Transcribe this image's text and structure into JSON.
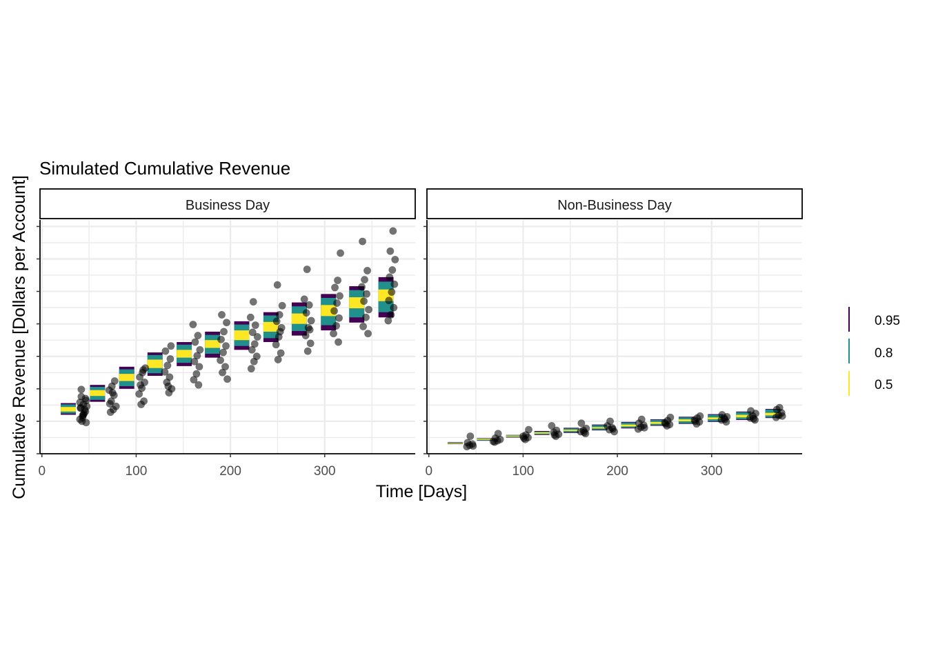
{
  "chart_data": {
    "type": "interval-with-points",
    "title": "Simulated Cumulative Revenue",
    "xlabel": "Time [Days]",
    "ylabel": "Cumulative Revenue [Dollars per Account]",
    "xlim": [
      -2,
      396
    ],
    "ylim": [
      0,
      36
    ],
    "x_ticks": [
      0,
      100,
      200,
      300
    ],
    "facets": [
      "Business Day",
      "Non-Business Day"
    ],
    "legend": {
      "position": "right",
      "entries": [
        {
          "label": "0.95",
          "color": "#440154"
        },
        {
          "label": "0.8",
          "color": "#21908C"
        },
        {
          "label": "0.5",
          "color": "#FDE725"
        }
      ]
    },
    "intervals": {
      "x": [
        28,
        59,
        90,
        120,
        151,
        181,
        212,
        243,
        273,
        304,
        334,
        365
      ],
      "width": 16,
      "Business Day": {
        "q95": [
          [
            6.0,
            7.8
          ],
          [
            8.0,
            10.6
          ],
          [
            10.0,
            13.4
          ],
          [
            12.0,
            15.6
          ],
          [
            13.5,
            17.2
          ],
          [
            14.8,
            18.8
          ],
          [
            16.0,
            20.4
          ],
          [
            17.2,
            21.8
          ],
          [
            18.2,
            23.3
          ],
          [
            19.0,
            24.6
          ],
          [
            20.2,
            25.8
          ],
          [
            21.0,
            27.2
          ]
        ],
        "q80": [
          [
            6.2,
            7.6
          ],
          [
            8.3,
            10.3
          ],
          [
            10.4,
            13.0
          ],
          [
            12.4,
            15.2
          ],
          [
            14.0,
            16.8
          ],
          [
            15.4,
            18.3
          ],
          [
            16.6,
            19.9
          ],
          [
            17.8,
            21.3
          ],
          [
            18.9,
            22.7
          ],
          [
            19.8,
            24.0
          ],
          [
            21.0,
            25.2
          ],
          [
            21.8,
            26.5
          ]
        ],
        "q50": [
          [
            6.5,
            7.2
          ],
          [
            8.9,
            9.8
          ],
          [
            11.2,
            12.3
          ],
          [
            13.2,
            14.5
          ],
          [
            14.8,
            16.0
          ],
          [
            16.3,
            17.5
          ],
          [
            17.5,
            19.0
          ],
          [
            18.8,
            20.3
          ],
          [
            20.0,
            21.6
          ],
          [
            21.2,
            22.9
          ],
          [
            22.4,
            24.1
          ],
          [
            23.5,
            25.3
          ]
        ]
      },
      "Non-Business Day": {
        "q95": [
          [
            1.5,
            1.8
          ],
          [
            2.0,
            2.4
          ],
          [
            2.5,
            2.9
          ],
          [
            2.9,
            3.5
          ],
          [
            3.2,
            4.0
          ],
          [
            3.6,
            4.5
          ],
          [
            3.9,
            4.9
          ],
          [
            4.3,
            5.3
          ],
          [
            4.6,
            5.7
          ],
          [
            4.9,
            6.1
          ],
          [
            5.2,
            6.5
          ],
          [
            5.5,
            6.9
          ]
        ],
        "q80": [
          [
            1.55,
            1.75
          ],
          [
            2.05,
            2.35
          ],
          [
            2.55,
            2.85
          ],
          [
            3.0,
            3.4
          ],
          [
            3.3,
            3.9
          ],
          [
            3.7,
            4.4
          ],
          [
            4.0,
            4.8
          ],
          [
            4.4,
            5.2
          ],
          [
            4.7,
            5.6
          ],
          [
            5.0,
            6.0
          ],
          [
            5.3,
            6.4
          ],
          [
            5.6,
            6.8
          ]
        ],
        "q50": [
          [
            1.6,
            1.7
          ],
          [
            2.15,
            2.3
          ],
          [
            2.65,
            2.8
          ],
          [
            3.1,
            3.3
          ],
          [
            3.5,
            3.7
          ],
          [
            3.9,
            4.1
          ],
          [
            4.2,
            4.5
          ],
          [
            4.6,
            4.9
          ],
          [
            5.0,
            5.3
          ],
          [
            5.3,
            5.6
          ],
          [
            5.6,
            6.0
          ],
          [
            5.9,
            6.3
          ]
        ]
      }
    },
    "points": {
      "Business Day": {
        "groups": [
          {
            "x": 44,
            "y": [
              5.3,
              5.9,
              6.5,
              7.0,
              7.6,
              8.2,
              8.8,
              6.2,
              7.3,
              5.0,
              6.8,
              7.9,
              5.6,
              8.5,
              7.1,
              6.0,
              4.8,
              9.9
            ]
          },
          {
            "x": 75,
            "y": [
              6.4,
              6.8,
              7.3,
              8.1,
              9.0,
              9.8,
              10.4,
              11.2,
              7.7,
              9.4
            ]
          },
          {
            "x": 106,
            "y": [
              7.6,
              8.1,
              9.2,
              10.1,
              11.0,
              11.8,
              12.5,
              13.2,
              10.6,
              12.9
            ]
          },
          {
            "x": 134,
            "y": [
              9.4,
              10.0,
              11.0,
              11.8,
              12.6,
              13.6,
              14.6,
              15.8,
              10.4,
              16.6
            ]
          },
          {
            "x": 164,
            "y": [
              10.6,
              11.4,
              12.3,
              13.4,
              14.2,
              15.1,
              16.0,
              17.2,
              18.2,
              19.9
            ]
          },
          {
            "x": 193,
            "y": [
              11.5,
              12.5,
              13.4,
              14.4,
              15.6,
              16.6,
              17.6,
              18.8,
              20.2,
              21.4
            ]
          },
          {
            "x": 225,
            "y": [
              13.1,
              14.2,
              15.0,
              16.0,
              16.9,
              18.0,
              18.7,
              19.8,
              21.0,
              23.4
            ]
          },
          {
            "x": 252,
            "y": [
              14.5,
              15.5,
              16.8,
              18.0,
              19.4,
              20.4,
              21.4,
              22.8,
              26.0,
              18.8
            ]
          },
          {
            "x": 282,
            "y": [
              15.8,
              17.0,
              18.2,
              19.4,
              20.5,
              21.7,
              22.9,
              23.8,
              28.4,
              19.1
            ]
          },
          {
            "x": 313,
            "y": [
              17.2,
              18.5,
              19.7,
              20.9,
              22.0,
              23.2,
              24.3,
              25.6,
              26.7,
              30.9
            ]
          },
          {
            "x": 343,
            "y": [
              18.5,
              19.6,
              21.0,
              22.2,
              23.5,
              24.6,
              25.7,
              26.8,
              28.2,
              32.7
            ]
          },
          {
            "x": 371,
            "y": [
              20.5,
              21.4,
              22.5,
              23.6,
              24.9,
              26.1,
              27.2,
              28.3,
              29.9,
              31.2,
              34.3
            ]
          }
        ]
      },
      "Non-Business Day": {
        "groups": [
          {
            "x": 44,
            "y": [
              1.1,
              1.3,
              1.5,
              1.7,
              2.7,
              1.2
            ]
          },
          {
            "x": 72,
            "y": [
              1.8,
              2.0,
              2.2,
              2.4,
              3.1,
              1.9
            ]
          },
          {
            "x": 103,
            "y": [
              2.2,
              2.5,
              2.7,
              2.9,
              3.7,
              2.4
            ]
          },
          {
            "x": 134,
            "y": [
              2.7,
              3.0,
              3.3,
              3.6,
              4.3,
              2.9
            ]
          },
          {
            "x": 164,
            "y": [
              3.1,
              3.4,
              3.6,
              3.9,
              4.7,
              3.3
            ]
          },
          {
            "x": 193,
            "y": [
              3.4,
              3.7,
              4.0,
              4.3,
              5.0,
              3.8
            ]
          },
          {
            "x": 225,
            "y": [
              3.8,
              4.1,
              4.4,
              4.7,
              5.3,
              4.0
            ]
          },
          {
            "x": 254,
            "y": [
              4.3,
              4.5,
              4.8,
              5.1,
              5.6,
              4.6
            ]
          },
          {
            "x": 284,
            "y": [
              4.6,
              4.9,
              5.2,
              5.5,
              5.8,
              5.0
            ]
          },
          {
            "x": 314,
            "y": [
              4.9,
              5.2,
              5.5,
              5.7,
              6.0,
              5.3
            ]
          },
          {
            "x": 343,
            "y": [
              5.2,
              5.5,
              5.8,
              6.2,
              6.6,
              5.4
            ]
          },
          {
            "x": 372,
            "y": [
              5.6,
              5.9,
              6.3,
              6.8,
              7.1,
              5.8
            ]
          }
        ]
      }
    }
  }
}
